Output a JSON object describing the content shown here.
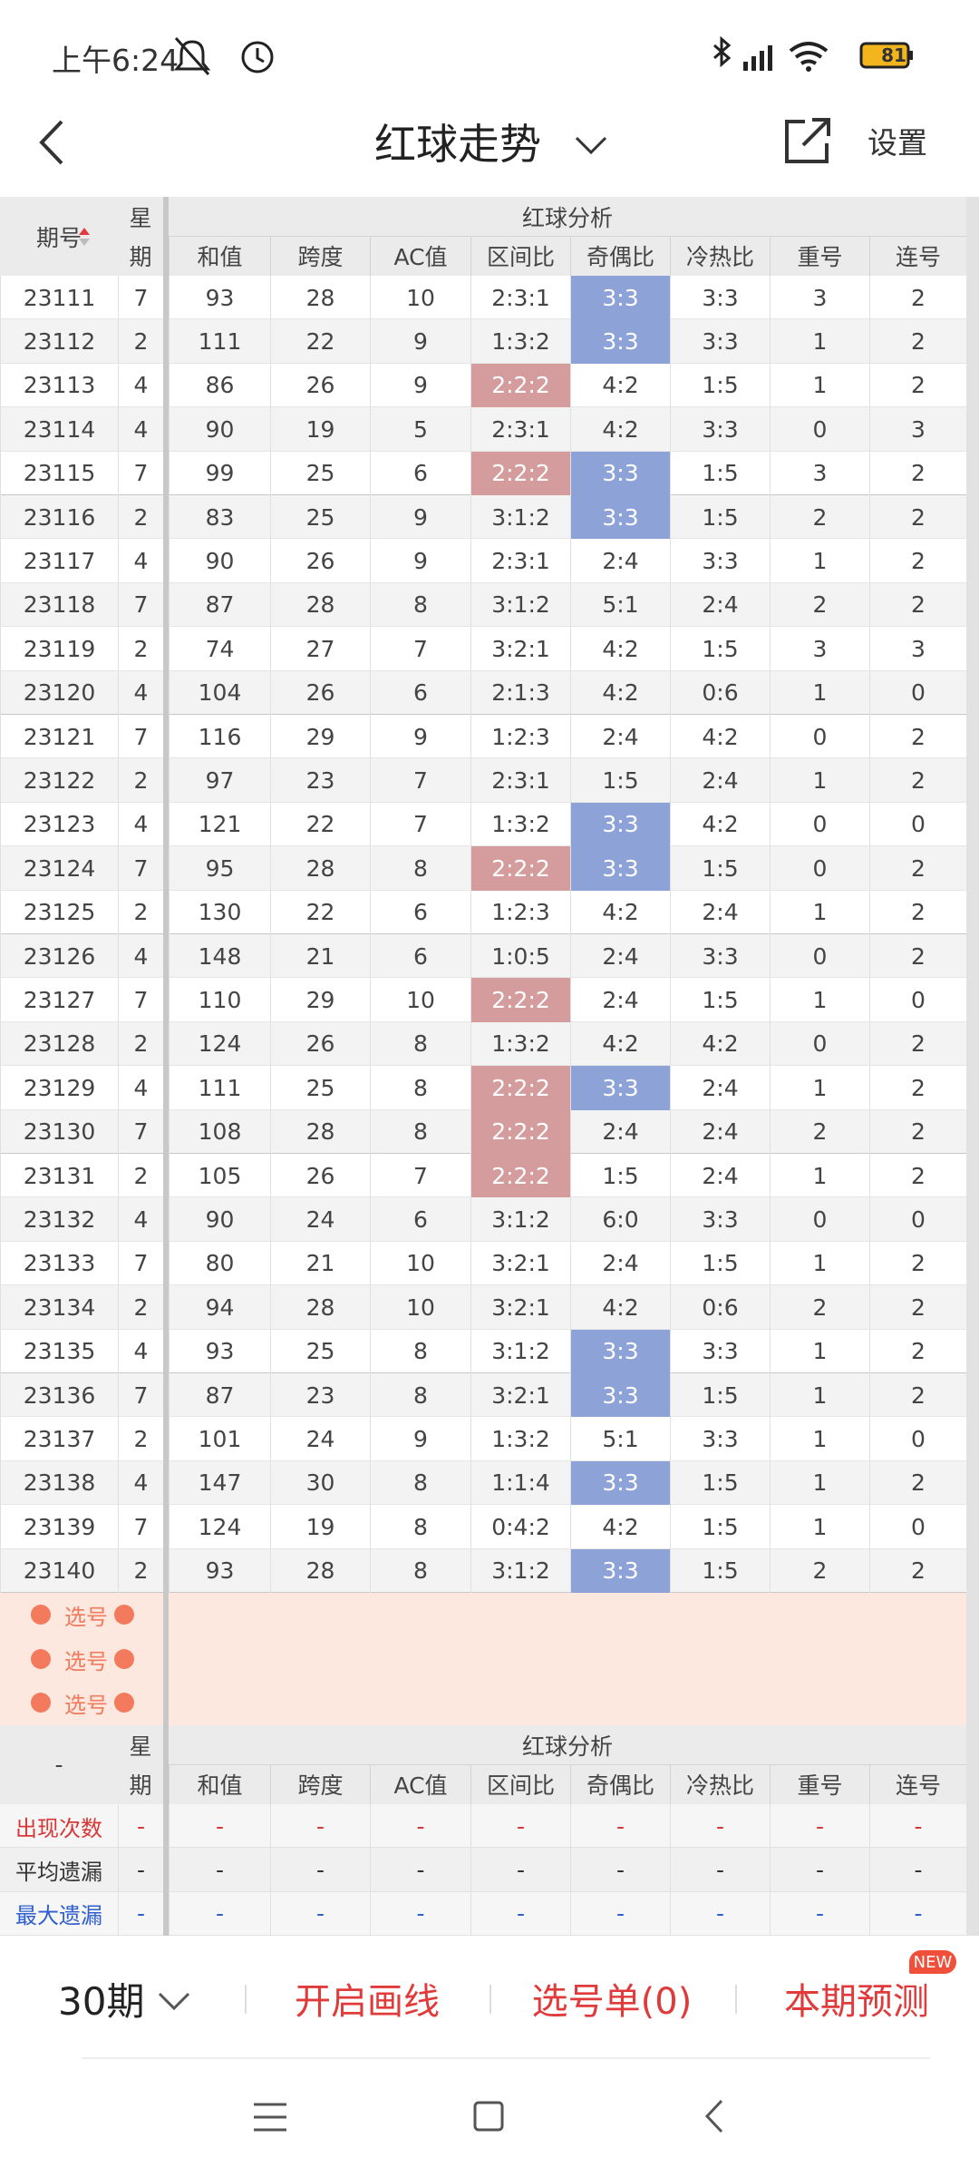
{
  "status_bar": {
    "time": "上午6:24",
    "battery": "81"
  },
  "header": {
    "title": "红球走势",
    "settings": "设置"
  },
  "table": {
    "period_header": "期号",
    "weekday_header": [
      "星",
      "期"
    ],
    "group_header": "红球分析",
    "columns": [
      "和值",
      "跨度",
      "AC值",
      "区间比",
      "奇偶比",
      "冷热比",
      "重号",
      "连号"
    ],
    "rows": [
      [
        23111,
        7,
        93,
        28,
        10,
        "2:3:1",
        "3:3",
        "3:3",
        3,
        2
      ],
      [
        23112,
        2,
        111,
        22,
        9,
        "1:3:2",
        "3:3",
        "3:3",
        1,
        2
      ],
      [
        23113,
        4,
        86,
        26,
        9,
        "2:2:2",
        "4:2",
        "1:5",
        1,
        2
      ],
      [
        23114,
        4,
        90,
        19,
        5,
        "2:3:1",
        "4:2",
        "3:3",
        0,
        3
      ],
      [
        23115,
        7,
        99,
        25,
        6,
        "2:2:2",
        "3:3",
        "1:5",
        3,
        2
      ],
      [
        23116,
        2,
        83,
        25,
        9,
        "3:1:2",
        "3:3",
        "1:5",
        2,
        2
      ],
      [
        23117,
        4,
        90,
        26,
        9,
        "2:3:1",
        "2:4",
        "3:3",
        1,
        2
      ],
      [
        23118,
        7,
        87,
        28,
        8,
        "3:1:2",
        "5:1",
        "2:4",
        2,
        2
      ],
      [
        23119,
        2,
        74,
        27,
        7,
        "3:2:1",
        "4:2",
        "1:5",
        3,
        3
      ],
      [
        23120,
        4,
        104,
        26,
        6,
        "2:1:3",
        "4:2",
        "0:6",
        1,
        0
      ],
      [
        23121,
        7,
        116,
        29,
        9,
        "1:2:3",
        "2:4",
        "4:2",
        0,
        2
      ],
      [
        23122,
        2,
        97,
        23,
        7,
        "2:3:1",
        "1:5",
        "2:4",
        1,
        2
      ],
      [
        23123,
        4,
        121,
        22,
        7,
        "1:3:2",
        "3:3",
        "4:2",
        0,
        0
      ],
      [
        23124,
        7,
        95,
        28,
        8,
        "2:2:2",
        "3:3",
        "1:5",
        0,
        2
      ],
      [
        23125,
        2,
        130,
        22,
        6,
        "1:2:3",
        "4:2",
        "2:4",
        1,
        2
      ],
      [
        23126,
        4,
        148,
        21,
        6,
        "1:0:5",
        "2:4",
        "3:3",
        0,
        2
      ],
      [
        23127,
        7,
        110,
        29,
        10,
        "2:2:2",
        "2:4",
        "1:5",
        1,
        0
      ],
      [
        23128,
        2,
        124,
        26,
        8,
        "1:3:2",
        "4:2",
        "4:2",
        0,
        2
      ],
      [
        23129,
        4,
        111,
        25,
        8,
        "2:2:2",
        "3:3",
        "2:4",
        1,
        2
      ],
      [
        23130,
        7,
        108,
        28,
        8,
        "2:2:2",
        "2:4",
        "2:4",
        2,
        2
      ],
      [
        23131,
        2,
        105,
        26,
        7,
        "2:2:2",
        "1:5",
        "2:4",
        1,
        2
      ],
      [
        23132,
        4,
        90,
        24,
        6,
        "3:1:2",
        "6:0",
        "3:3",
        0,
        0
      ],
      [
        23133,
        7,
        80,
        21,
        10,
        "3:2:1",
        "2:4",
        "1:5",
        1,
        2
      ],
      [
        23134,
        2,
        94,
        28,
        10,
        "3:2:1",
        "4:2",
        "0:6",
        2,
        2
      ],
      [
        23135,
        4,
        93,
        25,
        8,
        "3:1:2",
        "3:3",
        "3:3",
        1,
        2
      ],
      [
        23136,
        7,
        87,
        23,
        8,
        "3:2:1",
        "3:3",
        "1:5",
        1,
        2
      ],
      [
        23137,
        2,
        101,
        24,
        9,
        "1:3:2",
        "5:1",
        "3:3",
        1,
        0
      ],
      [
        23138,
        4,
        147,
        30,
        8,
        "1:1:4",
        "3:3",
        "1:5",
        1,
        2
      ],
      [
        23139,
        7,
        124,
        19,
        8,
        "0:4:2",
        "4:2",
        "1:5",
        1,
        0
      ],
      [
        23140,
        2,
        93,
        28,
        8,
        "3:1:2",
        "3:3",
        "1:5",
        2,
        2
      ]
    ],
    "highlight_colors": {
      "5": "#d49c9c",
      "6": "#8da3d8"
    },
    "highlights": [
      [
        0,
        6
      ],
      [
        1,
        6
      ],
      [
        2,
        5
      ],
      [
        4,
        5
      ],
      [
        4,
        6
      ],
      [
        5,
        6
      ],
      [
        12,
        6
      ],
      [
        13,
        5
      ],
      [
        13,
        6
      ],
      [
        16,
        5
      ],
      [
        18,
        5
      ],
      [
        18,
        6
      ],
      [
        19,
        5
      ],
      [
        20,
        5
      ],
      [
        24,
        6
      ],
      [
        25,
        6
      ],
      [
        27,
        6
      ],
      [
        29,
        6
      ]
    ]
  },
  "pick_rows": [
    "选号",
    "选号",
    "选号"
  ],
  "footer_table": {
    "period_header": "-",
    "weekday_header": [
      "星",
      "期"
    ],
    "group_header": "红球分析",
    "columns": [
      "和值",
      "跨度",
      "AC值",
      "区间比",
      "奇偶比",
      "冷热比",
      "重号",
      "连号"
    ]
  },
  "stats": [
    {
      "label": "出现次数",
      "color": "#d93636",
      "values": [
        "-",
        "-",
        "-",
        "-",
        "-",
        "-",
        "-",
        "-",
        "-"
      ]
    },
    {
      "label": "平均遗漏",
      "color": "#333333",
      "values": [
        "-",
        "-",
        "-",
        "-",
        "-",
        "-",
        "-",
        "-",
        "-"
      ]
    },
    {
      "label": "最大遗漏",
      "color": "#2f5fcf",
      "values": [
        "-",
        "-",
        "-",
        "-",
        "-",
        "-",
        "-",
        "-",
        "-"
      ]
    }
  ],
  "toolbar": {
    "periods": "30期",
    "draw": "开启画线",
    "picks": "选号单(0)",
    "predict": "本期预测",
    "badge": "NEW"
  }
}
